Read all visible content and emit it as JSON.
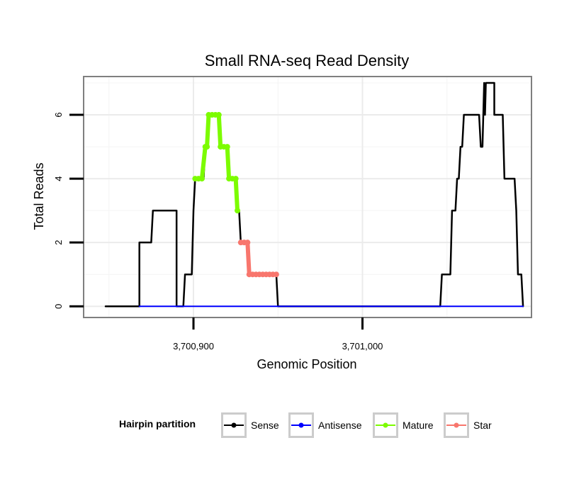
{
  "chart_data": {
    "type": "line",
    "title": "Small RNA-seq Read Density",
    "xlabel": "Genomic Position",
    "ylabel": "Total Reads",
    "xlim": [
      3700835,
      3701100
    ],
    "ylim": [
      -0.35,
      7.2
    ],
    "xticks": [
      3700900,
      3701000
    ],
    "xtick_labels": [
      "3,700,900",
      "3,701,000"
    ],
    "yticks": [
      0,
      2,
      4,
      6
    ],
    "ytick_labels": [
      "0",
      "2",
      "4",
      "6"
    ],
    "grid": true,
    "legend_position": "bottom",
    "legend_title": "Hairpin partition",
    "series": [
      {
        "name": "Sense",
        "color": "#000000",
        "style": "line",
        "points": [
          [
            3700848,
            0
          ],
          [
            3700868,
            0
          ],
          [
            3700868,
            2
          ],
          [
            3700875,
            2
          ],
          [
            3700876,
            3
          ],
          [
            3700890,
            3
          ],
          [
            3700890,
            0
          ],
          [
            3700894,
            0
          ],
          [
            3700895,
            1
          ],
          [
            3700899,
            1
          ],
          [
            3700900,
            3
          ],
          [
            3700901,
            4
          ],
          [
            3700906,
            4
          ],
          [
            3700907,
            5
          ],
          [
            3700908,
            5
          ],
          [
            3700909,
            6
          ],
          [
            3700915,
            6
          ],
          [
            3700916,
            5
          ],
          [
            3700920,
            5
          ],
          [
            3700921,
            4
          ],
          [
            3700925,
            4
          ],
          [
            3700926,
            3
          ],
          [
            3700927,
            3
          ],
          [
            3700928,
            2
          ],
          [
            3700932,
            2
          ],
          [
            3700933,
            1
          ],
          [
            3700949,
            1
          ],
          [
            3700950,
            0
          ],
          [
            3701046,
            0
          ],
          [
            3701047,
            1
          ],
          [
            3701052,
            1
          ],
          [
            3701053,
            3
          ],
          [
            3701055,
            3
          ],
          [
            3701056,
            4
          ],
          [
            3701057,
            4
          ],
          [
            3701058,
            5
          ],
          [
            3701059,
            5
          ],
          [
            3701060,
            6
          ],
          [
            3701069,
            6
          ],
          [
            3701070,
            5
          ],
          [
            3701071,
            5
          ],
          [
            3701072,
            7
          ],
          [
            3701072.5,
            6
          ],
          [
            3701073,
            7
          ],
          [
            3701078,
            7
          ],
          [
            3701078,
            6
          ],
          [
            3701083,
            6
          ],
          [
            3701084,
            4
          ],
          [
            3701090,
            4
          ],
          [
            3701091,
            3
          ],
          [
            3701092,
            1
          ],
          [
            3701094,
            1
          ],
          [
            3701095,
            0
          ]
        ]
      },
      {
        "name": "Antisense",
        "color": "#0000ff",
        "style": "line",
        "points": [
          [
            3700868,
            0
          ],
          [
            3701095,
            0
          ]
        ]
      },
      {
        "name": "Mature",
        "color": "#7cfc00",
        "style": "line-points",
        "points": [
          [
            3700901,
            4
          ],
          [
            3700903,
            4
          ],
          [
            3700905,
            4
          ],
          [
            3700907,
            5
          ],
          [
            3700908,
            5
          ],
          [
            3700909,
            6
          ],
          [
            3700911,
            6
          ],
          [
            3700913,
            6
          ],
          [
            3700915,
            6
          ],
          [
            3700916,
            5
          ],
          [
            3700918,
            5
          ],
          [
            3700920,
            5
          ],
          [
            3700921,
            4
          ],
          [
            3700923,
            4
          ],
          [
            3700925,
            4
          ],
          [
            3700926,
            3
          ]
        ]
      },
      {
        "name": "Star",
        "color": "#f8766d",
        "style": "line-points",
        "points": [
          [
            3700928,
            2
          ],
          [
            3700930,
            2
          ],
          [
            3700932,
            2
          ],
          [
            3700933,
            1
          ],
          [
            3700935,
            1
          ],
          [
            3700937,
            1
          ],
          [
            3700939,
            1
          ],
          [
            3700941,
            1
          ],
          [
            3700943,
            1
          ],
          [
            3700945,
            1
          ],
          [
            3700947,
            1
          ],
          [
            3700949,
            1
          ]
        ]
      }
    ]
  }
}
